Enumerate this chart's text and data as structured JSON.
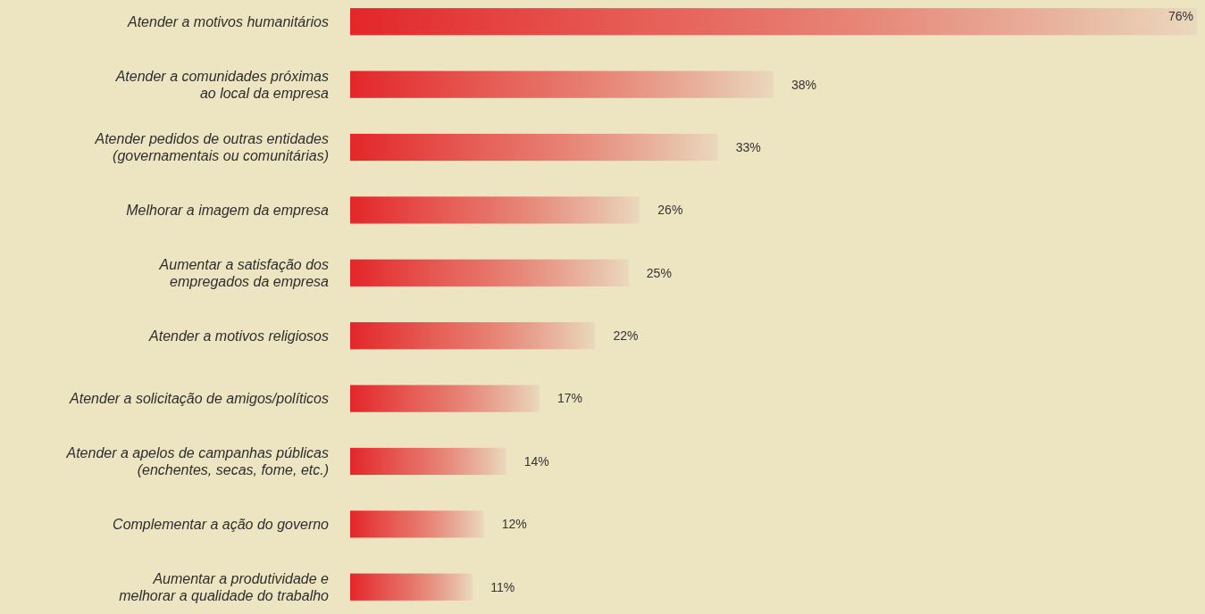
{
  "chart_data": {
    "type": "bar",
    "orientation": "horizontal",
    "categories": [
      "Atender a motivos humanitários",
      "Atender a comunidades próximas\nao local da empresa",
      "Atender pedidos de outras entidades\n(governamentais ou comunitárias)",
      "Melhorar a imagem da empresa",
      "Aumentar a satisfação dos\nempregados da empresa",
      "Atender a motivos religiosos",
      "Atender a solicitação de amigos/políticos",
      "Atender a apelos de campanhas públicas\n(enchentes, secas, fome, etc.)",
      "Complementar a ação do governo",
      "Aumentar a produtividade e\nmelhorar a qualidade do trabalho"
    ],
    "values": [
      76,
      38,
      33,
      26,
      25,
      22,
      17,
      14,
      12,
      11
    ],
    "value_labels": [
      "76%",
      "38%",
      "33%",
      "26%",
      "25%",
      "22%",
      "17%",
      "14%",
      "12%",
      "11%"
    ],
    "color": "#e3262a"
  }
}
